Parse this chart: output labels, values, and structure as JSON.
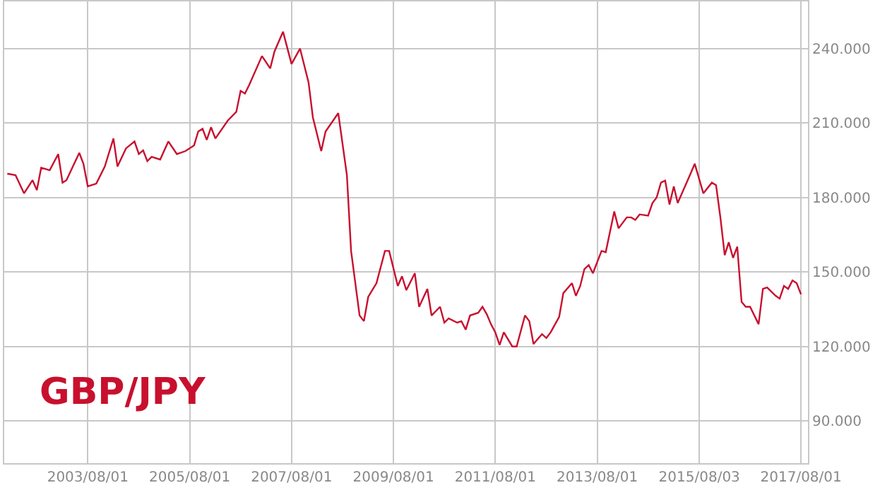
{
  "chart_data": {
    "type": "line",
    "annotations": [
      "GBP/JPY"
    ],
    "x": [
      "2002-01",
      "2002-03",
      "2002-05",
      "2002-07",
      "2002-08",
      "2002-09",
      "2002-11",
      "2003-01",
      "2003-02",
      "2003-03",
      "2003-06",
      "2003-07",
      "2003-08",
      "2003-10",
      "2003-12",
      "2004-02",
      "2004-03",
      "2004-05",
      "2004-07",
      "2004-08",
      "2004-09",
      "2004-10",
      "2004-11",
      "2005-01",
      "2005-03",
      "2005-05",
      "2005-07",
      "2005-09",
      "2005-10",
      "2005-11",
      "2005-12",
      "2006-01",
      "2006-02",
      "2006-05",
      "2006-07",
      "2006-08",
      "2006-09",
      "2006-10",
      "2007-01",
      "2007-03",
      "2007-04",
      "2007-06",
      "2007-08",
      "2007-10",
      "2007-12",
      "2008-01",
      "2008-03",
      "2008-04",
      "2008-07",
      "2008-09",
      "2008-10",
      "2008-12",
      "2009-01",
      "2009-02",
      "2009-04",
      "2009-06",
      "2009-07",
      "2009-09",
      "2009-10",
      "2009-11",
      "2010-01",
      "2010-02",
      "2010-04",
      "2010-05",
      "2010-07",
      "2010-08",
      "2010-09",
      "2010-11",
      "2010-12",
      "2011-01",
      "2011-02",
      "2011-04",
      "2011-05",
      "2011-06",
      "2011-07",
      "2011-08",
      "2011-09",
      "2011-10",
      "2011-12",
      "2012-01",
      "2012-03",
      "2012-04",
      "2012-05",
      "2012-07",
      "2012-08",
      "2012-09",
      "2012-11",
      "2012-12",
      "2013-02",
      "2013-03",
      "2013-04",
      "2013-05",
      "2013-06",
      "2013-07",
      "2013-09",
      "2013-10",
      "2013-12",
      "2014-01",
      "2014-03",
      "2014-04",
      "2014-05",
      "2014-06",
      "2014-08",
      "2014-09",
      "2014-10",
      "2014-11",
      "2014-12",
      "2015-01",
      "2015-02",
      "2015-03",
      "2015-06",
      "2015-07",
      "2015-09",
      "2015-11",
      "2015-12",
      "2016-01",
      "2016-02",
      "2016-03",
      "2016-04",
      "2016-05",
      "2016-06",
      "2016-07",
      "2016-08",
      "2016-10",
      "2016-11",
      "2016-12",
      "2017-02",
      "2017-03",
      "2017-04",
      "2017-05",
      "2017-06",
      "2017-07",
      "2017-08"
    ],
    "series": [
      {
        "color": "#c8102e",
        "values": [
          189.6,
          189,
          181.7,
          187,
          183,
          192,
          191,
          197.5,
          186,
          187,
          198,
          193.6,
          184.5,
          185.6,
          192.5,
          203.8,
          192.5,
          199.8,
          202.6,
          197.5,
          199,
          194.7,
          196.4,
          195.3,
          202.6,
          197.5,
          198.7,
          201,
          206.6,
          207.7,
          203.2,
          208.3,
          203.8,
          211,
          214.5,
          223,
          221.9,
          225.3,
          237,
          232,
          238.9,
          246.8,
          233.8,
          240,
          226.4,
          212.3,
          198.7,
          206.6,
          214,
          189,
          158.5,
          132.5,
          130.2,
          140,
          145.5,
          158.5,
          158.5,
          144.4,
          148.3,
          142.7,
          149.5,
          136,
          143.2,
          132.5,
          136,
          129.6,
          131.3,
          129.6,
          130.2,
          126.8,
          132.5,
          133.6,
          136,
          133,
          129,
          125.7,
          120.6,
          125.7,
          120,
          120,
          132.5,
          130.2,
          121,
          125,
          123.4,
          125.7,
          131.9,
          141.5,
          145.5,
          140.4,
          144.4,
          151.2,
          152.8,
          149.5,
          158.5,
          158,
          174.4,
          167.6,
          172,
          172,
          171,
          173.2,
          172.7,
          177.8,
          180,
          186,
          186.8,
          177.2,
          184.5,
          177.8,
          189.6,
          193.6,
          181.7,
          186,
          185,
          172,
          156.8,
          162,
          155.7,
          160.2,
          138,
          136,
          136,
          129,
          143.2,
          143.8,
          140.4,
          139.3,
          144.4,
          143.2,
          146.6,
          145.5,
          141
        ]
      }
    ],
    "xlim": [
      "2001-12-10",
      "2017-09-20"
    ],
    "xticks": [
      {
        "value": "2003-08-01",
        "label": "2003/08/01"
      },
      {
        "value": "2005-08-01",
        "label": "2005/08/01"
      },
      {
        "value": "2007-08-01",
        "label": "2007/08/01"
      },
      {
        "value": "2009-08-01",
        "label": "2009/08/01"
      },
      {
        "value": "2011-08-01",
        "label": "2011/08/01"
      },
      {
        "value": "2013-08-01",
        "label": "2013/08/01"
      },
      {
        "value": "2015-08-03",
        "label": "2015/08/03"
      },
      {
        "value": "2017-08-01",
        "label": "2017/08/01"
      }
    ],
    "ylim": [
      73,
      259
    ],
    "yticks": [
      {
        "value": 90,
        "label": "90.000"
      },
      {
        "value": 120,
        "label": "120.000"
      },
      {
        "value": 150,
        "label": "150.000"
      },
      {
        "value": 180,
        "label": "180.000"
      },
      {
        "value": 210,
        "label": "210.000"
      },
      {
        "value": 240,
        "label": "240.000"
      }
    ],
    "grid": true,
    "marker": "none",
    "line_style": "solid"
  }
}
